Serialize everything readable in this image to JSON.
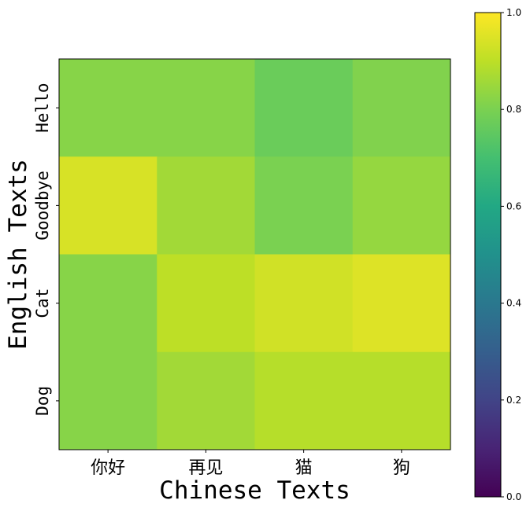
{
  "chart_data": {
    "type": "heatmap",
    "title": "",
    "xlabel": "Chinese Texts",
    "ylabel": "English Texts",
    "x_categories": [
      "你好",
      "再见",
      "猫",
      "狗"
    ],
    "y_categories": [
      "Hello",
      "Goodbye",
      "Cat",
      "Dog"
    ],
    "values": [
      [
        0.82,
        0.82,
        0.77,
        0.81
      ],
      [
        0.94,
        0.86,
        0.8,
        0.84
      ],
      [
        0.82,
        0.9,
        0.93,
        0.95
      ],
      [
        0.82,
        0.86,
        0.89,
        0.89
      ]
    ],
    "colormap": "viridis",
    "vmin": 0.0,
    "vmax": 1.0,
    "colorbar_ticks": [
      "0.0",
      "0.2",
      "0.4",
      "0.6",
      "0.8",
      "1.0"
    ],
    "grid": false,
    "legend": "colorbar-right"
  }
}
